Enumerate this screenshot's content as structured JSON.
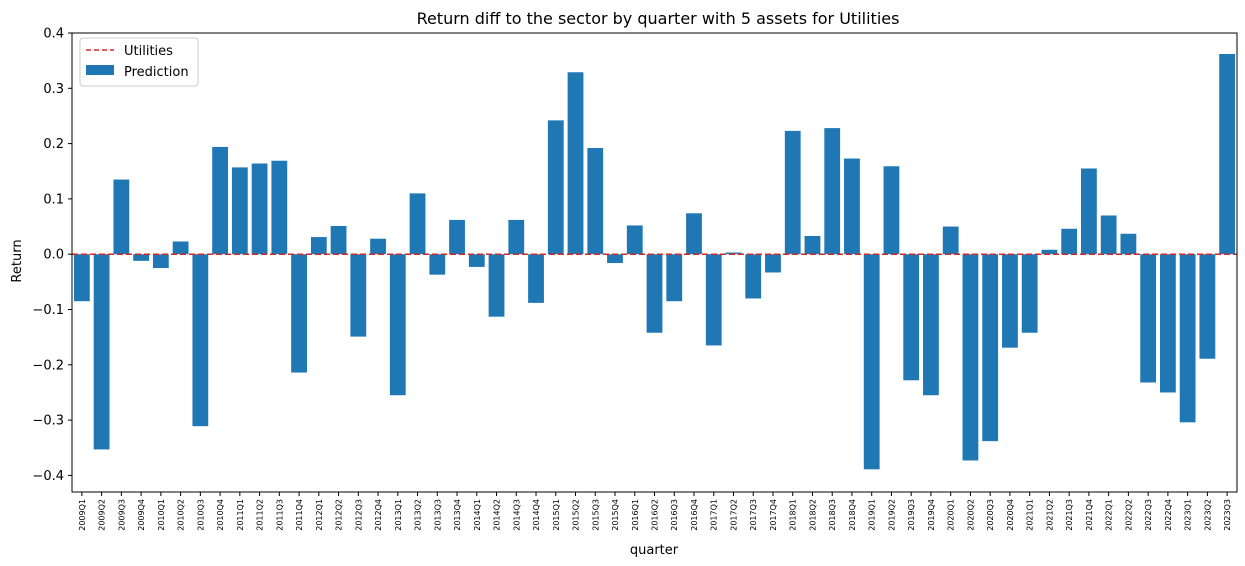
{
  "chart_data": {
    "type": "bar",
    "title": "Return diff to the sector by quarter with 5 assets for Utilities",
    "xlabel": "quarter",
    "ylabel": "Return",
    "ylim": [
      -0.43,
      0.4
    ],
    "yticks": [
      -0.4,
      -0.3,
      -0.2,
      -0.1,
      0.0,
      0.1,
      0.2,
      0.3,
      0.4
    ],
    "ytick_labels": [
      "−0.4",
      "−0.3",
      "−0.2",
      "−0.1",
      "0.0",
      "0.1",
      "0.2",
      "0.3",
      "0.4"
    ],
    "grid": false,
    "legend_position": "top-left",
    "reference_line": {
      "name": "Utilities",
      "value": 0.0,
      "color": "#d62728",
      "style": "dashed"
    },
    "series": [
      {
        "name": "Prediction",
        "color": "#1f77b4",
        "categories": [
          "2009Q1",
          "2009Q2",
          "2009Q3",
          "2009Q4",
          "2010Q1",
          "2010Q2",
          "2010Q3",
          "2010Q4",
          "2011Q1",
          "2011Q2",
          "2011Q3",
          "2011Q4",
          "2012Q1",
          "2012Q2",
          "2012Q3",
          "2012Q4",
          "2013Q1",
          "2013Q2",
          "2013Q3",
          "2013Q4",
          "2014Q1",
          "2014Q2",
          "2014Q3",
          "2014Q4",
          "2015Q1",
          "2015Q2",
          "2015Q3",
          "2015Q4",
          "2016Q1",
          "2016Q2",
          "2016Q3",
          "2016Q4",
          "2017Q1",
          "2017Q2",
          "2017Q3",
          "2017Q4",
          "2018Q1",
          "2018Q2",
          "2018Q3",
          "2018Q4",
          "2019Q1",
          "2019Q2",
          "2019Q3",
          "2019Q4",
          "2020Q1",
          "2020Q2",
          "2020Q3",
          "2020Q4",
          "2021Q1",
          "2021Q2",
          "2021Q3",
          "2021Q4",
          "2022Q1",
          "2022Q2",
          "2022Q3",
          "2022Q4",
          "2023Q1",
          "2023Q2",
          "2023Q3"
        ],
        "values": [
          -0.085,
          -0.353,
          0.135,
          -0.012,
          -0.025,
          0.023,
          -0.311,
          0.194,
          0.157,
          0.164,
          0.169,
          -0.214,
          0.031,
          0.051,
          -0.149,
          0.028,
          -0.255,
          0.11,
          -0.037,
          0.062,
          -0.023,
          -0.113,
          0.062,
          -0.088,
          0.242,
          0.329,
          0.192,
          -0.016,
          0.052,
          -0.142,
          -0.085,
          0.074,
          -0.165,
          0.003,
          -0.08,
          -0.033,
          0.223,
          0.033,
          0.228,
          0.173,
          -0.389,
          0.159,
          -0.228,
          -0.255,
          0.05,
          -0.373,
          -0.338,
          -0.169,
          -0.142,
          0.008,
          0.046,
          0.155,
          0.07,
          0.037,
          -0.232,
          -0.25,
          -0.304,
          -0.189,
          0.362
        ]
      }
    ]
  }
}
